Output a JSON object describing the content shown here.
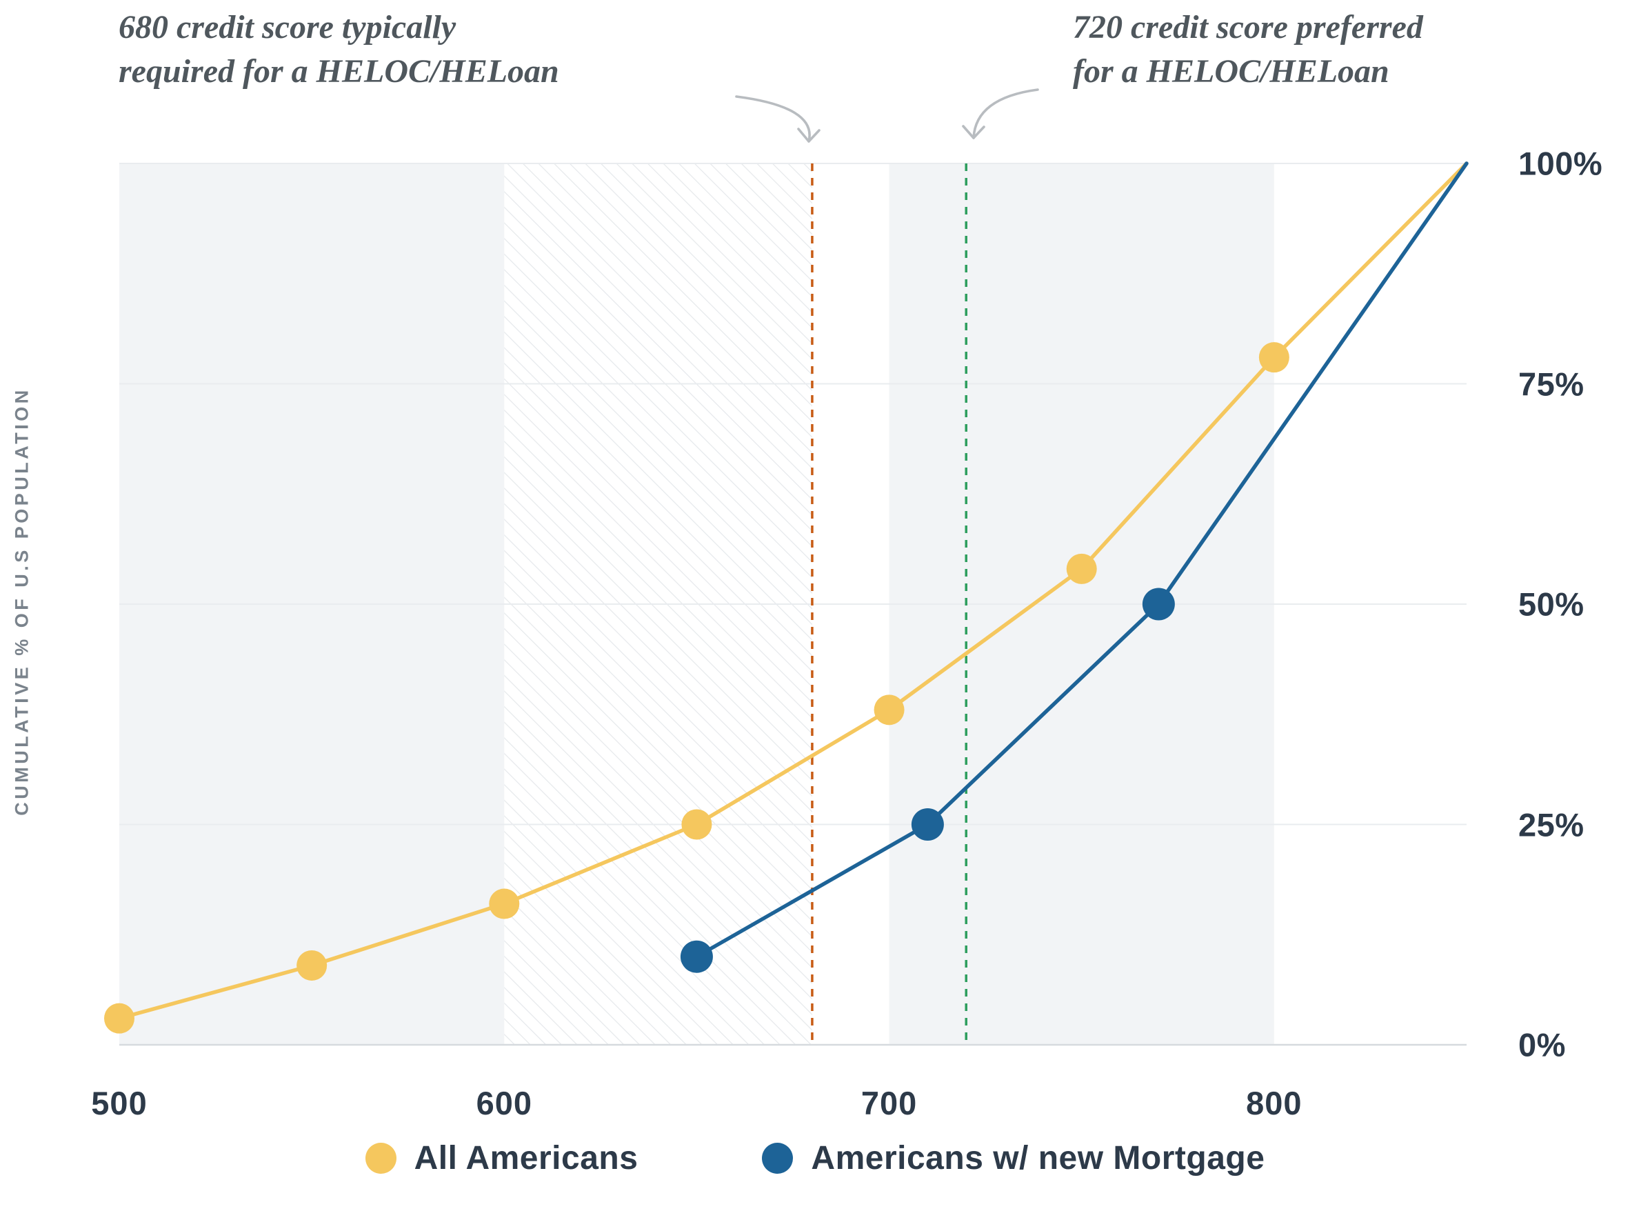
{
  "annotations": {
    "left": {
      "line1": "680 credit score typically",
      "line2": "required for a HELOC/HELoan"
    },
    "right": {
      "line1": "720 credit score preferred",
      "line2": "for a HELOC/HELoan"
    }
  },
  "chart_data": {
    "type": "line",
    "title": "",
    "xlabel": "",
    "ylabel": "CUMULATIVE % OF U.S POPULATION",
    "xlim": [
      500,
      850
    ],
    "ylim": [
      0,
      100
    ],
    "x_ticks": [
      500,
      600,
      700,
      800
    ],
    "x_tick_labels": [
      "500",
      "600",
      "700",
      "800"
    ],
    "y_ticks": [
      0,
      25,
      50,
      75,
      100
    ],
    "y_tick_labels": [
      "0%",
      "25%",
      "50%",
      "75%",
      "100%"
    ],
    "grid": "horizontal",
    "legend_position": "bottom",
    "series": [
      {
        "name": "All Americans",
        "color": "#f5c75e",
        "x": [
          500,
          550,
          600,
          650,
          700,
          750,
          800,
          850
        ],
        "values": [
          3,
          9,
          16,
          25,
          38,
          54,
          78,
          100
        ]
      },
      {
        "name": "Americans w/ new Mortgage",
        "color": "#1d6397",
        "x": [
          650,
          710,
          770,
          850
        ],
        "values": [
          10,
          25,
          50,
          100
        ]
      }
    ],
    "reference_lines": [
      {
        "x": 680,
        "color": "#c85c15",
        "style": "dashed",
        "label": "680 credit score typically required for a HELOC/HELoan"
      },
      {
        "x": 720,
        "color": "#2e9e5e",
        "style": "dashed",
        "label": "720 credit score preferred for a HELOC/HELoan"
      }
    ],
    "background_bands": [
      {
        "from": 500,
        "to": 600,
        "style": "solid"
      },
      {
        "from": 600,
        "to": 680,
        "style": "hatch"
      },
      {
        "from": 700,
        "to": 800,
        "style": "solid"
      }
    ]
  },
  "colors": {
    "band": "#f2f4f6",
    "grid": "#e9ecef",
    "baseline": "#d6dade",
    "hatch_line": "#e5e8eb",
    "arrow": "#b8bcc0",
    "tick_text": "#2d3a49",
    "axis_title_text": "#7a838c",
    "annotation_text": "#4f575d",
    "legend_text": "#2d3a49"
  }
}
